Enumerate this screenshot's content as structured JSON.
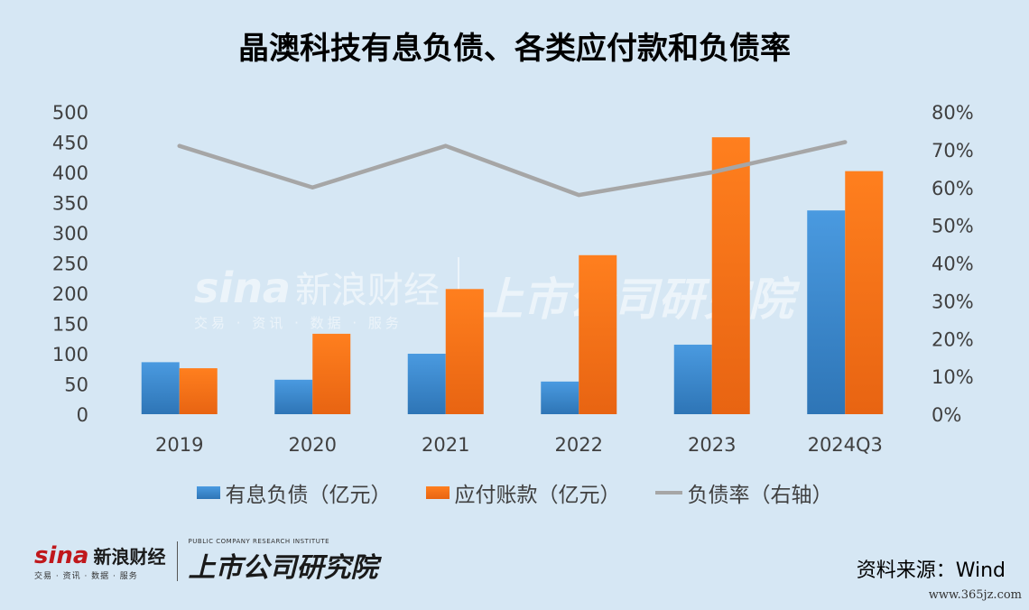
{
  "chart_data": {
    "type": "bar",
    "title": "晶澳科技有息负债、各类应付款和负债率",
    "categories": [
      "2019",
      "2020",
      "2021",
      "2022",
      "2023",
      "2024Q3"
    ],
    "series": [
      {
        "name": "有息负债（亿元）",
        "axis": "left",
        "kind": "bar",
        "color": "#2e75b6",
        "values": [
          86,
          57,
          100,
          54,
          115,
          337
        ]
      },
      {
        "name": "应付账款（亿元）",
        "axis": "left",
        "kind": "bar",
        "color": "#e86412",
        "values": [
          76,
          133,
          207,
          263,
          458,
          402
        ]
      },
      {
        "name": "负债率（右轴）",
        "axis": "right",
        "kind": "line",
        "color": "#a6a6a6",
        "values": [
          71,
          60,
          71,
          58,
          64,
          72
        ]
      }
    ],
    "y_left": {
      "min": 0,
      "max": 500,
      "ticks": [
        "0",
        "50",
        "100",
        "150",
        "200",
        "250",
        "300",
        "350",
        "400",
        "450",
        "500"
      ]
    },
    "y_right": {
      "min": 0,
      "max": 80,
      "ticks": [
        "0%",
        "10%",
        "20%",
        "30%",
        "40%",
        "50%",
        "60%",
        "70%",
        "80%"
      ]
    },
    "grid": false,
    "legend_position": "bottom"
  },
  "watermark": {
    "sina": "sina",
    "sina_cn": "新浪财经",
    "sina_sub": "交易 · 资讯 · 数据 · 服务",
    "institute": "上市公司研究院"
  },
  "footer": {
    "sina": "sina",
    "sina_cn": "新浪财经",
    "sina_sub": "交易 · 资讯 · 数据 · 服务",
    "institute": "上市公司研究院",
    "institute_en": "PUBLIC COMPANY RESEARCH INSTITUTE",
    "source": "资料来源：Wind",
    "site": "www.365jz.com"
  }
}
